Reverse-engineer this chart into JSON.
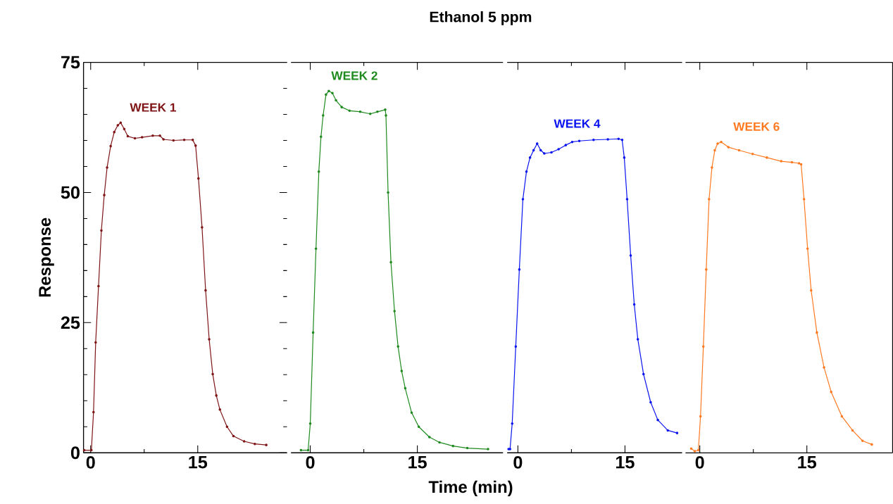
{
  "chart_data": [
    {
      "type": "line",
      "ylabel": "Response",
      "xlim": [
        -1,
        27.5
      ],
      "xticks": [
        0,
        15
      ],
      "ylim": [
        0,
        75
      ],
      "yticks": [
        0,
        25,
        50,
        75
      ],
      "marker": "circle",
      "series": [
        {
          "name": "WEEK 1",
          "color": "#7f1416",
          "x": [
            -0.9,
            0.1,
            0.4,
            0.7,
            1.1,
            1.5,
            1.9,
            2.3,
            2.8,
            3.3,
            3.8,
            4.2,
            4.7,
            5.2,
            6.2,
            7.2,
            8.7,
            9.7,
            10.2,
            11.6,
            13.1,
            14.3,
            14.7,
            15.1,
            15.6,
            16.1,
            16.6,
            17.1,
            17.6,
            18.1,
            19.1,
            20,
            21.5,
            23,
            24.6
          ],
          "values": [
            0.5,
            0.5,
            7.8,
            21.2,
            32,
            42.7,
            49.5,
            54.8,
            58.9,
            61.6,
            62.9,
            63.4,
            62.2,
            60.8,
            60.4,
            60.6,
            60.9,
            60.9,
            60.2,
            60,
            60.1,
            60.1,
            59,
            52.7,
            43.3,
            31.2,
            21.8,
            15.1,
            11,
            8.3,
            5,
            3.2,
            2.2,
            1.7,
            1.5
          ]
        }
      ]
    },
    {
      "type": "line",
      "title": "Ethanol 5 ppm",
      "xlabel": "Time (min)",
      "xlim": [
        -2.7,
        27
      ],
      "xticks": [
        0,
        15
      ],
      "ylim": [
        0,
        75
      ],
      "tick_labels": "x",
      "marker": "circle",
      "series": [
        {
          "name": "WEEK 2",
          "color": "#1e8a1e",
          "x": [
            -1.3,
            -0.3,
            0,
            0.4,
            0.8,
            1.2,
            1.5,
            1.8,
            2.2,
            2.6,
            3.1,
            3.6,
            4.4,
            5.5,
            7,
            8.4,
            9.4,
            10.5,
            10.6,
            10.9,
            11.3,
            11.8,
            12.3,
            12.8,
            13.3,
            14.2,
            15.2,
            16.7,
            18.1,
            20,
            22,
            24.9
          ],
          "values": [
            0.5,
            0.5,
            5.6,
            23.1,
            39.2,
            54,
            60.7,
            64.8,
            68.8,
            69.5,
            69.1,
            67.7,
            66.4,
            65.7,
            65.5,
            65.1,
            65.5,
            65.9,
            64.8,
            50,
            36.6,
            27.2,
            20.4,
            15.7,
            12.4,
            7.7,
            5,
            3,
            2,
            1.3,
            0.9,
            0.7
          ]
        }
      ]
    },
    {
      "type": "line",
      "xlim": [
        -1.5,
        23
      ],
      "xticks": [
        0,
        15
      ],
      "ylim": [
        0,
        75
      ],
      "tick_labels": "x",
      "marker": "circle",
      "series": [
        {
          "name": "WEEK 4",
          "color": "#0a14f0",
          "x": [
            -1.3,
            -1.1,
            -0.8,
            -0.3,
            0.2,
            0.7,
            1.2,
            1.7,
            2.2,
            2.7,
            3.2,
            3.7,
            4.7,
            5.7,
            6.7,
            7.6,
            8.6,
            10.6,
            12.6,
            14.1,
            14.6,
            14.9,
            15.3,
            15.8,
            16.3,
            16.8,
            17.6,
            18.6,
            19.6,
            21,
            22.3
          ],
          "values": [
            0.7,
            0.7,
            5.6,
            20.4,
            35.2,
            48.7,
            54,
            56.7,
            58.1,
            59.4,
            58.1,
            57.5,
            57.7,
            58.3,
            59.1,
            59.7,
            59.9,
            60.1,
            60.2,
            60.3,
            60.1,
            56.7,
            48.7,
            37.9,
            28.5,
            21.8,
            15.1,
            9.7,
            6.3,
            4.3,
            3.8
          ]
        }
      ]
    },
    {
      "type": "line",
      "xlim": [
        -2,
        27
      ],
      "xticks": [
        0,
        15
      ],
      "ylim": [
        0,
        75
      ],
      "tick_labels": "x",
      "marker": "circle",
      "series": [
        {
          "name": "WEEK 6",
          "color": "#ff7920",
          "x": [
            -1.2,
            -0.7,
            -0.2,
            0.1,
            0.5,
            0.9,
            1.3,
            1.7,
            2.1,
            2.5,
            3,
            4,
            5.5,
            7.4,
            9.4,
            11.4,
            12.9,
            13.9,
            14.2,
            14.6,
            15.1,
            15.6,
            16.4,
            17.4,
            18.4,
            19.9,
            21.4,
            22.8,
            24.1
          ],
          "values": [
            0.8,
            0.3,
            0.5,
            7,
            20.4,
            35.2,
            48.7,
            54.8,
            58.1,
            59.4,
            59.7,
            58.7,
            58.1,
            57.4,
            56.7,
            56,
            55.8,
            55.6,
            55.4,
            48.7,
            39.2,
            31.2,
            23.1,
            16.4,
            11.7,
            7,
            4.3,
            2.3,
            1.6
          ]
        }
      ]
    }
  ]
}
